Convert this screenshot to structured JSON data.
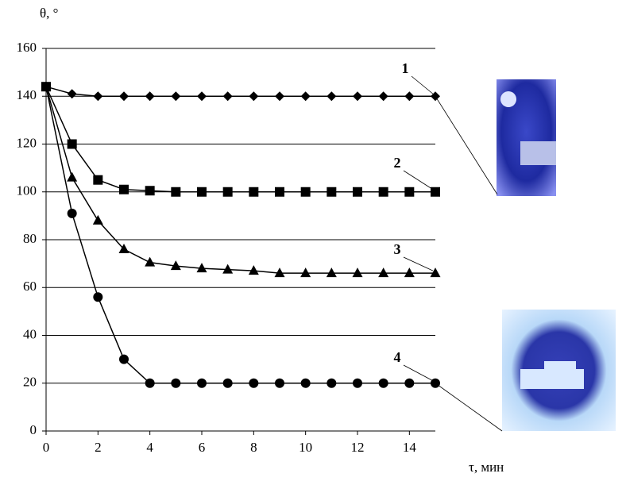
{
  "chart_data": {
    "type": "line",
    "ylabel": "θ, °",
    "xlabel": "τ, мин",
    "x": [
      0,
      1,
      2,
      3,
      4,
      5,
      6,
      7,
      8,
      9,
      10,
      11,
      12,
      13,
      14,
      15
    ],
    "xlim": [
      0,
      15
    ],
    "xticks": [
      0,
      2,
      4,
      6,
      8,
      10,
      12,
      14
    ],
    "ylim": [
      0,
      160
    ],
    "yticks": [
      0,
      20,
      40,
      60,
      80,
      100,
      120,
      140,
      160
    ],
    "grid": true,
    "series": [
      {
        "name": "1",
        "color": "#000000",
        "marker": "diamond",
        "values": [
          144,
          141,
          140,
          140,
          140,
          140,
          140,
          140,
          140,
          140,
          140,
          140,
          140,
          140,
          140,
          140
        ]
      },
      {
        "name": "2",
        "color": "#000000",
        "marker": "square",
        "values": [
          144,
          120,
          105,
          101,
          100.5,
          100,
          100,
          100,
          100,
          100,
          100,
          100,
          100,
          100,
          100,
          100
        ]
      },
      {
        "name": "3",
        "color": "#000000",
        "marker": "triangle",
        "values": [
          144,
          106,
          88,
          76,
          70.5,
          69,
          68,
          67.5,
          67,
          66,
          66,
          66,
          66,
          66,
          66,
          66
        ]
      },
      {
        "name": "4",
        "color": "#000000",
        "marker": "circle",
        "values": [
          144,
          91,
          56,
          30,
          20,
          20,
          20,
          20,
          20,
          20,
          20,
          20,
          20,
          20,
          20,
          20
        ]
      }
    ]
  }
}
